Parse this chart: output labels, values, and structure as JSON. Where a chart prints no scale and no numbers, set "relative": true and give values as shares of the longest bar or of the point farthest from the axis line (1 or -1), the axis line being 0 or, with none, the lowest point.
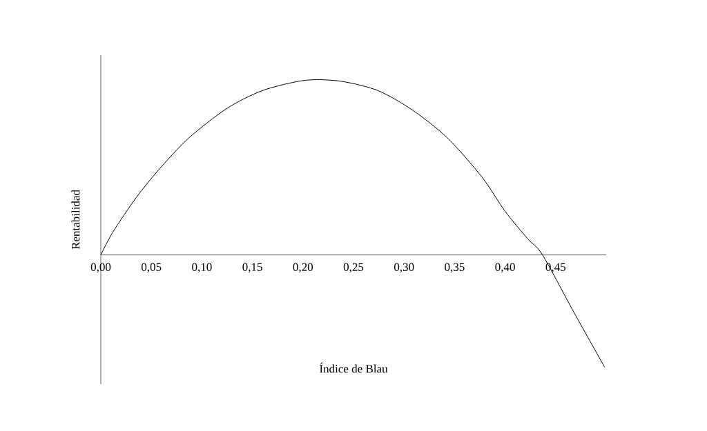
{
  "chart_data": {
    "type": "line",
    "xlabel": "Índice de Blau",
    "ylabel": "Rentabilidad",
    "relative": true,
    "x": [
      0,
      0.012,
      0.035,
      0.057,
      0.087,
      0.125,
      0.159,
      0.193,
      0.214,
      0.241,
      0.275,
      0.309,
      0.343,
      0.377,
      0.4,
      0.4225,
      0.437,
      0.468,
      0.4985
    ],
    "series": [
      {
        "color": "#000000",
        "values": [
          0,
          0.131,
          0.327,
          0.484,
          0.667,
          0.837,
          0.936,
          0.988,
          1,
          0.988,
          0.936,
          0.824,
          0.667,
          0.445,
          0.249,
          0.091,
          0,
          -0.327,
          -0.641
        ]
      }
    ],
    "xlim": [
      0,
      0.5
    ],
    "xticks": [
      {
        "value": 0,
        "label": "0,00"
      },
      {
        "value": 0.05,
        "label": "0,05"
      },
      {
        "value": 0.1,
        "label": "0,10"
      },
      {
        "value": 0.15,
        "label": "0,15"
      },
      {
        "value": 0.2,
        "label": "0,20"
      },
      {
        "value": 0.25,
        "label": "0,25"
      },
      {
        "value": 0.3,
        "label": "0,30"
      },
      {
        "value": 0.35,
        "label": "0,35"
      },
      {
        "value": 0.4,
        "label": "0,40"
      },
      {
        "value": 0.45,
        "label": "0,45"
      }
    ],
    "marker": "none",
    "line_style": "solid"
  }
}
